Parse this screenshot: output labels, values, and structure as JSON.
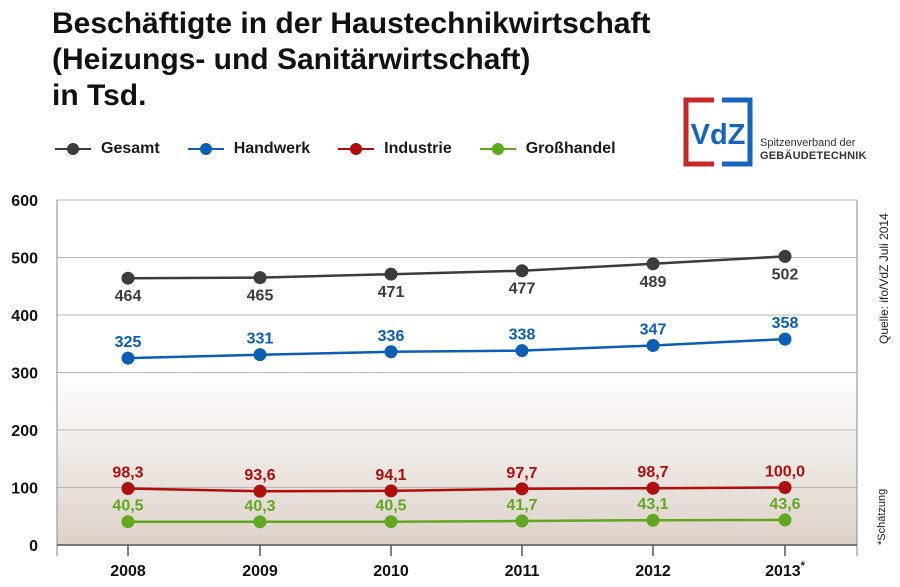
{
  "title_lines": [
    "Beschäftigte in der Haustechnikwirtschaft",
    "(Heizungs- und Sanitärwirtschaft)",
    "in Tsd."
  ],
  "logo": {
    "text": "VdZ",
    "line1": "Spitzenverband der",
    "line2": "GEBÄUDETECHNIK",
    "colors": {
      "blue": "#1565c0",
      "red": "#c62828",
      "text": "#1565c0"
    }
  },
  "source_note": "Quelle: ifo/VdZ Juli 2014",
  "estimate_note": "*Schätzung",
  "chart_data": {
    "type": "line",
    "categories": [
      "2008",
      "2009",
      "2010",
      "2011",
      "2012",
      "2013*"
    ],
    "ylim": [
      0,
      600
    ],
    "yticks": [
      "0",
      "100",
      "200",
      "300",
      "400",
      "500",
      "600"
    ],
    "grid": true,
    "legend_position": "top-left",
    "series": [
      {
        "name": "Gesamt",
        "color": "#3c3c3c",
        "labels": [
          "464",
          "465",
          "471",
          "477",
          "489",
          "502"
        ],
        "values": [
          464,
          465,
          471,
          477,
          489,
          502
        ],
        "label_pos": "below"
      },
      {
        "name": "Handwerk",
        "color": "#0a5fb4",
        "labels": [
          "325",
          "331",
          "336",
          "338",
          "347",
          "358"
        ],
        "values": [
          325,
          331,
          336,
          338,
          347,
          358
        ],
        "label_pos": "above"
      },
      {
        "name": "Industrie",
        "color": "#b00d0d",
        "labels": [
          "98,3",
          "93,6",
          "94,1",
          "97,7",
          "98,7",
          "100,0"
        ],
        "values": [
          98.3,
          93.6,
          94.1,
          97.7,
          98.7,
          100.0
        ],
        "label_pos": "above"
      },
      {
        "name": "Großhandel",
        "color": "#5fa820",
        "labels": [
          "40,5",
          "40,3",
          "40,5",
          "41,7",
          "43,1",
          "43,6"
        ],
        "values": [
          40.5,
          40.3,
          40.5,
          41.7,
          43.1,
          43.6
        ],
        "label_pos": "above"
      }
    ]
  }
}
